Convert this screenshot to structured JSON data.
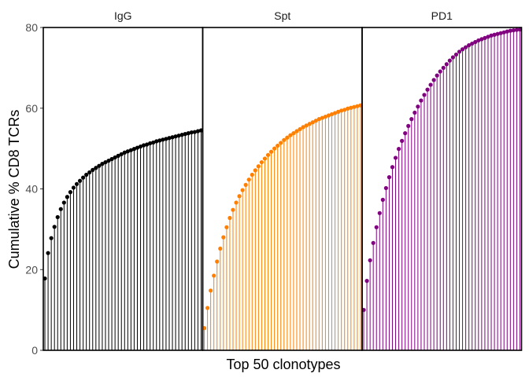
{
  "chart_data": {
    "type": "lollipop",
    "ylabel": "Cumulative % CD8 TCRs",
    "xlabel": "Top 50 clonotypes",
    "ylim": [
      0,
      80
    ],
    "yticks": [
      "0",
      "20",
      "40",
      "60",
      "80"
    ],
    "grid": false,
    "panels": [
      {
        "name": "IgG",
        "color": "#000000",
        "values": [
          17.8,
          24.1,
          27.8,
          30.6,
          33.0,
          35.0,
          36.6,
          38.0,
          39.2,
          40.3,
          41.2,
          42.0,
          42.8,
          43.5,
          44.1,
          44.7,
          45.2,
          45.7,
          46.2,
          46.6,
          47.0,
          47.4,
          47.8,
          48.2,
          48.6,
          49.0,
          49.3,
          49.6,
          49.9,
          50.2,
          50.5,
          50.8,
          51.0,
          51.3,
          51.5,
          51.8,
          52.0,
          52.2,
          52.4,
          52.6,
          52.8,
          53.0,
          53.2,
          53.4,
          53.6,
          53.8,
          54.0,
          54.1,
          54.3,
          54.5
        ]
      },
      {
        "name": "Spt",
        "color": "#FF8000",
        "values": [
          5.5,
          10.5,
          14.8,
          18.5,
          22.0,
          25.2,
          28.0,
          30.5,
          32.8,
          34.8,
          36.6,
          38.2,
          39.7,
          41.0,
          42.3,
          43.5,
          44.6,
          45.6,
          46.6,
          47.5,
          48.4,
          49.2,
          50.0,
          50.7,
          51.4,
          52.1,
          52.7,
          53.3,
          53.8,
          54.3,
          54.8,
          55.3,
          55.7,
          56.1,
          56.5,
          56.9,
          57.3,
          57.6,
          57.9,
          58.2,
          58.5,
          58.8,
          59.1,
          59.4,
          59.6,
          59.9,
          60.1,
          60.3,
          60.5,
          60.7
        ]
      },
      {
        "name": "PD1",
        "color": "#800080",
        "values": [
          10.0,
          17.2,
          22.3,
          26.6,
          30.5,
          34.0,
          37.3,
          40.2,
          42.9,
          45.4,
          47.7,
          49.9,
          51.9,
          53.8,
          55.6,
          57.3,
          58.9,
          60.4,
          61.9,
          63.3,
          64.6,
          65.8,
          67.0,
          68.1,
          69.1,
          70.0,
          70.9,
          71.8,
          72.6,
          73.3,
          74.0,
          74.6,
          75.1,
          75.6,
          76.0,
          76.4,
          76.8,
          77.1,
          77.4,
          77.7,
          78.0,
          78.2,
          78.4,
          78.6,
          78.8,
          79.0,
          79.2,
          79.3,
          79.4,
          79.5
        ]
      }
    ]
  }
}
